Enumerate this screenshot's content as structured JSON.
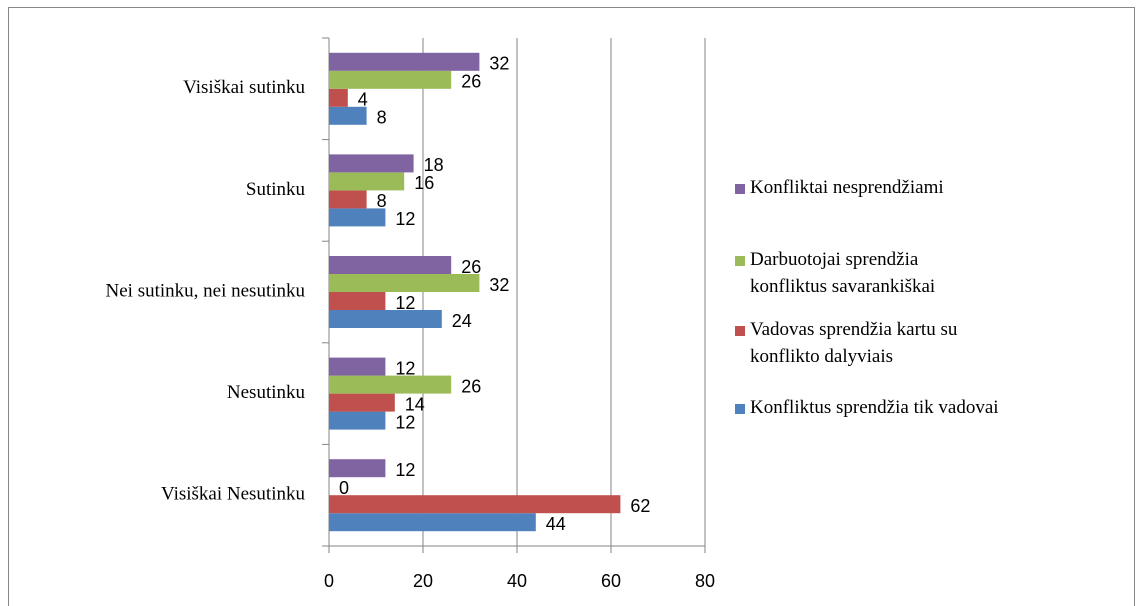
{
  "chart_data": {
    "type": "bar",
    "orientation": "horizontal",
    "categories": [
      "Visiškai Nesutinku",
      "Nesutinku",
      "Nei sutinku, nei nesutinku",
      "Sutinku",
      "Visiškai sutinku"
    ],
    "series": [
      {
        "name": "Konfliktus sprendžia tik vadovai",
        "color": "#4f81bd",
        "values": [
          44,
          12,
          24,
          12,
          8
        ]
      },
      {
        "name": "Vadovas sprendžia kartu su konflikto dalyviais",
        "color": "#c0504d",
        "values": [
          62,
          14,
          12,
          8,
          4
        ]
      },
      {
        "name": "Darbuotojai sprendžia konfliktus savarankiškai",
        "color": "#9bbb59",
        "values": [
          0,
          26,
          32,
          16,
          26
        ]
      },
      {
        "name": "Konfliktai nesprendžiami",
        "color": "#8064a2",
        "values": [
          12,
          12,
          26,
          18,
          32
        ]
      }
    ],
    "xlim": [
      0,
      80
    ],
    "xticks": [
      0,
      20,
      40,
      60,
      80
    ],
    "grid": true,
    "legend": "right"
  }
}
